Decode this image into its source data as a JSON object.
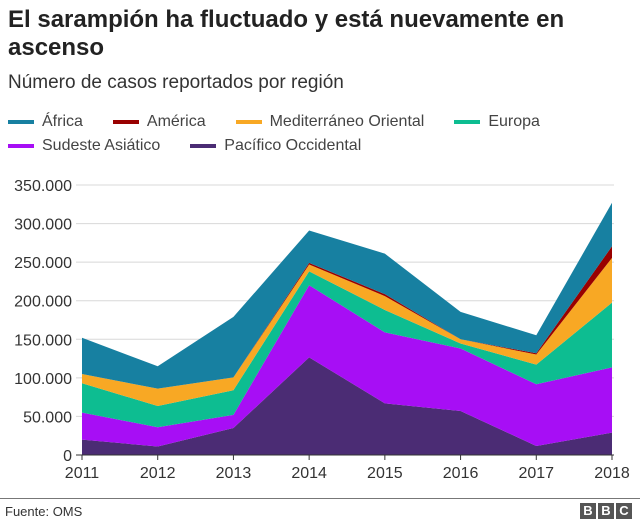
{
  "chart_data": {
    "type": "area",
    "stacked": true,
    "title": "El sarampión ha fluctuado y está nuevamente en ascenso",
    "subtitle": "Número de casos reportados por región",
    "x": [
      "2011",
      "2012",
      "2013",
      "2014",
      "2015",
      "2016",
      "2017",
      "2018"
    ],
    "ylim": [
      0,
      350000
    ],
    "yticks": [
      "0",
      "50.000",
      "100.000",
      "150.000",
      "200.000",
      "250.000",
      "300.000",
      "350.000"
    ],
    "ytick_values": [
      0,
      50000,
      100000,
      150000,
      200000,
      250000,
      300000,
      350000
    ],
    "grid": true,
    "legend_position": "top",
    "series": [
      {
        "name": "Pacífico Occidental",
        "color": "#4b2c74",
        "values": [
          20000,
          11000,
          35000,
          126500,
          67000,
          57000,
          11700,
          29000
        ]
      },
      {
        "name": "Sudeste Asiático",
        "color": "#a70ef5",
        "values": [
          35000,
          25000,
          17000,
          93500,
          92000,
          81000,
          80000,
          84600
        ]
      },
      {
        "name": "Europa",
        "color": "#0dbd91",
        "values": [
          38000,
          27500,
          32000,
          18000,
          29000,
          6600,
          25500,
          84000
        ]
      },
      {
        "name": "Mediterráneo Oriental",
        "color": "#f8a824",
        "values": [
          12000,
          22500,
          16600,
          9000,
          18000,
          5400,
          13000,
          58000
        ]
      },
      {
        "name": "América",
        "color": "#990000",
        "values": [
          0,
          0,
          0,
          2000,
          2500,
          0,
          1700,
          15000
        ]
      },
      {
        "name": "África",
        "color": "#1780a1",
        "values": [
          47000,
          29000,
          78400,
          42000,
          52500,
          35600,
          23300,
          56400
        ]
      }
    ],
    "legend_order": [
      "África",
      "América",
      "Mediterráneo Oriental",
      "Europa",
      "Sudeste Asiático",
      "Pacífico Occidental"
    ]
  },
  "footer": {
    "source": "Fuente: OMS",
    "logo": "BBC"
  }
}
